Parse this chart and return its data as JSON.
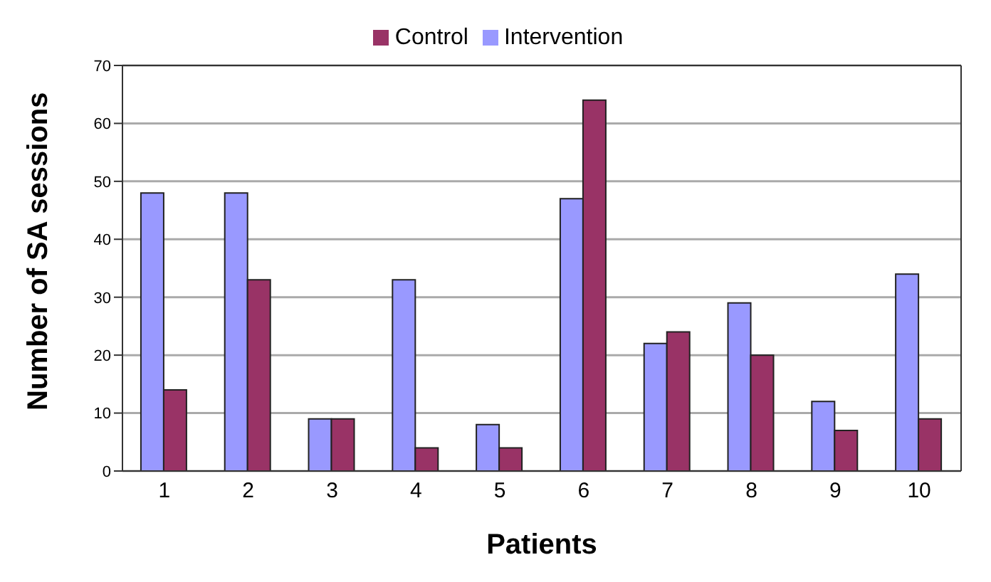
{
  "chart_data": {
    "type": "bar",
    "xlabel": "Patients",
    "ylabel": "Number of SA sessions",
    "categories": [
      "1",
      "2",
      "3",
      "4",
      "5",
      "6",
      "7",
      "8",
      "9",
      "10"
    ],
    "series": [
      {
        "name": "Intervention",
        "color": "#9999ff",
        "values": [
          48,
          48,
          9,
          33,
          8,
          47,
          22,
          29,
          12,
          34
        ]
      },
      {
        "name": "Control",
        "color": "#993366",
        "values": [
          14,
          33,
          9,
          4,
          4,
          64,
          24,
          20,
          7,
          9
        ]
      }
    ],
    "ylim": [
      0,
      70
    ],
    "yticks": [
      0,
      10,
      20,
      30,
      40,
      50,
      60,
      70
    ],
    "grid": "y",
    "legend": "top"
  }
}
